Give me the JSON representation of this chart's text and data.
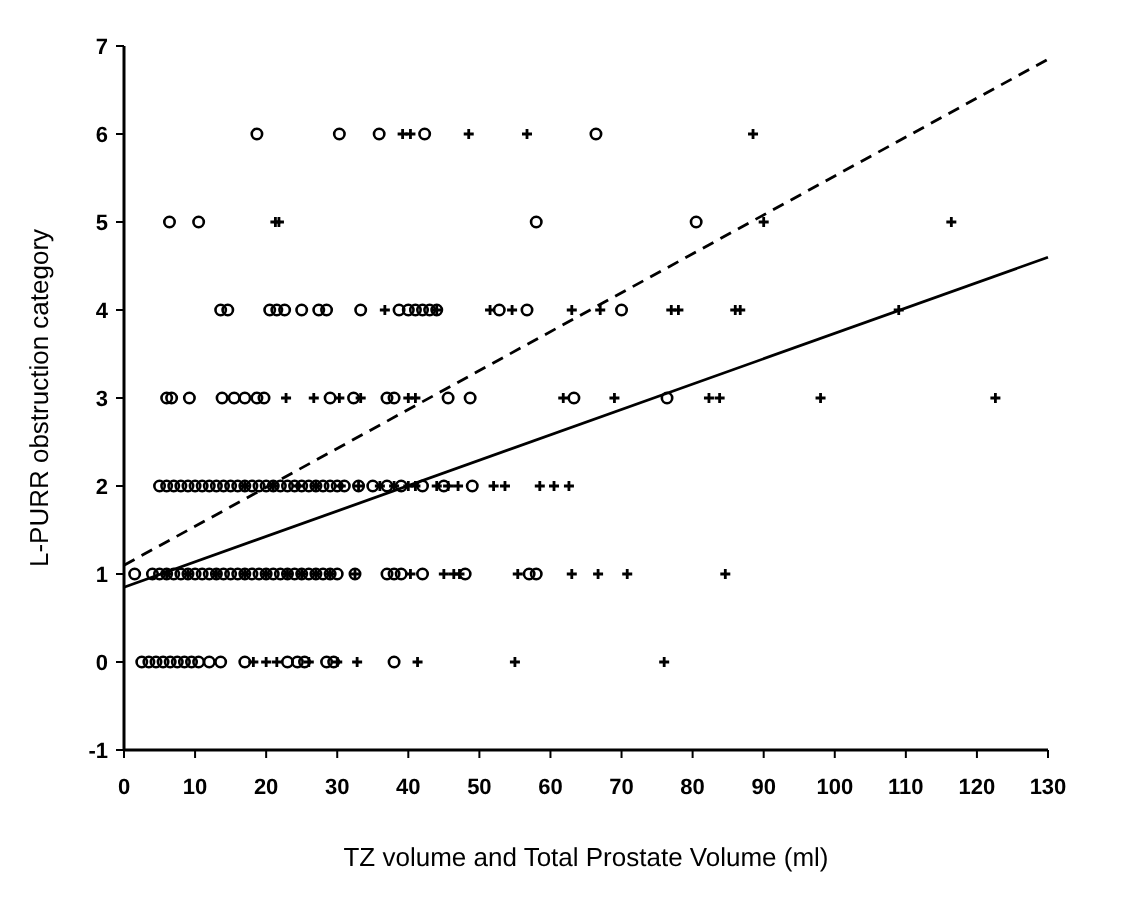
{
  "chart_data": {
    "type": "scatter",
    "xlabel": "TZ volume and Total Prostate Volume (ml)",
    "ylabel": "L-PURR obstruction category",
    "xlim": [
      0,
      130
    ],
    "ylim": [
      -1,
      7
    ],
    "xticks": [
      0,
      10,
      20,
      30,
      40,
      50,
      60,
      70,
      80,
      90,
      100,
      110,
      120,
      130
    ],
    "yticks": [
      -1,
      0,
      1,
      2,
      3,
      4,
      5,
      6,
      7
    ],
    "grid": false,
    "series": [
      {
        "marker": "circle",
        "color": "#000000",
        "x": [
          18.7,
          30.3,
          35.9,
          42.3,
          66.4,
          6.4,
          10.5,
          58,
          80.5,
          13.6,
          14.6,
          20.5,
          21.5,
          22.6,
          25,
          27.4,
          28.5,
          33.3,
          38.7,
          40,
          41,
          42,
          43,
          44,
          52.8,
          56.7,
          70,
          6,
          6.7,
          9.2,
          13.8,
          15.5,
          17,
          18.7,
          19.7,
          29,
          32.3,
          37,
          38,
          45.6,
          48.7,
          63.3,
          76.4,
          5,
          6,
          7,
          8,
          9,
          10,
          11,
          12,
          13,
          14,
          15,
          16,
          17,
          18,
          19,
          20,
          21,
          22,
          23,
          24,
          25,
          26,
          27,
          28,
          29,
          30,
          31,
          33,
          35,
          37,
          39,
          42,
          45,
          49,
          1.5,
          4,
          5,
          6,
          7,
          8,
          9,
          10,
          11,
          12,
          13,
          14,
          15,
          16,
          17,
          18,
          19,
          20,
          21,
          22,
          23,
          24,
          25,
          26,
          27,
          28,
          29,
          30,
          32.5,
          37,
          38,
          39,
          42,
          48,
          57,
          58,
          2.5,
          3.5,
          4.5,
          5.5,
          6.5,
          7.5,
          8.5,
          9.5,
          10.5,
          12,
          13.6,
          17,
          23,
          24.4,
          25.4,
          28.5,
          29.5,
          38
        ],
        "values": [
          6,
          6,
          6,
          6,
          6,
          5,
          5,
          5,
          5,
          4,
          4,
          4,
          4,
          4,
          4,
          4,
          4,
          4,
          4,
          4,
          4,
          4,
          4,
          4,
          4,
          4,
          4,
          3,
          3,
          3,
          3,
          3,
          3,
          3,
          3,
          3,
          3,
          3,
          3,
          3,
          3,
          3,
          3,
          2,
          2,
          2,
          2,
          2,
          2,
          2,
          2,
          2,
          2,
          2,
          2,
          2,
          2,
          2,
          2,
          2,
          2,
          2,
          2,
          2,
          2,
          2,
          2,
          2,
          2,
          2,
          2,
          2,
          2,
          2,
          2,
          2,
          2,
          1,
          1,
          1,
          1,
          1,
          1,
          1,
          1,
          1,
          1,
          1,
          1,
          1,
          1,
          1,
          1,
          1,
          1,
          1,
          1,
          1,
          1,
          1,
          1,
          1,
          1,
          1,
          1,
          1,
          1,
          1,
          1,
          1,
          1,
          1,
          1,
          0,
          0,
          0,
          0,
          0,
          0,
          0,
          0,
          0,
          0,
          0,
          0,
          0,
          0,
          0,
          0,
          0,
          0
        ]
      },
      {
        "marker": "cross",
        "color": "#000000",
        "x": [
          39.2,
          40.3,
          48.5,
          56.7,
          88.5,
          21.3,
          21.8,
          90,
          116.4,
          36.7,
          44,
          51.5,
          54.6,
          63,
          67,
          77,
          78,
          86,
          86.7,
          109,
          22.8,
          26.7,
          30.3,
          33.3,
          40,
          41,
          61.8,
          69,
          82.3,
          83.8,
          98,
          122.6,
          17,
          21,
          24.5,
          27,
          30.5,
          33,
          36,
          38,
          40,
          41,
          44,
          45.6,
          47,
          52,
          53.6,
          58.5,
          60.5,
          62.6,
          6,
          9,
          13,
          17,
          20,
          23,
          25,
          27,
          29,
          32.5,
          40.3,
          45,
          46.4,
          47.2,
          55.4,
          63,
          66.7,
          70.8,
          84.6,
          18.2,
          20,
          21.5,
          26,
          30,
          32.8,
          41.3,
          55,
          76
        ],
        "values": [
          6,
          6,
          6,
          6,
          6,
          5,
          5,
          5,
          5,
          4,
          4,
          4,
          4,
          4,
          4,
          4,
          4,
          4,
          4,
          4,
          3,
          3,
          3,
          3,
          3,
          3,
          3,
          3,
          3,
          3,
          3,
          3,
          2,
          2,
          2,
          2,
          2,
          2,
          2,
          2,
          2,
          2,
          2,
          2,
          2,
          2,
          2,
          2,
          2,
          2,
          1,
          1,
          1,
          1,
          1,
          1,
          1,
          1,
          1,
          1,
          1,
          1,
          1,
          1,
          1,
          1,
          1,
          1,
          1,
          0,
          0,
          0,
          0,
          0,
          0,
          0,
          0,
          0
        ]
      },
      {
        "type": "line",
        "marker": "none",
        "line_style": "dashed",
        "color": "#000000",
        "x": [
          0,
          130
        ],
        "values": [
          1.1,
          6.85
        ]
      },
      {
        "type": "line",
        "marker": "none",
        "line_style": "solid",
        "color": "#000000",
        "x": [
          0,
          130
        ],
        "values": [
          0.85,
          4.6
        ]
      }
    ]
  }
}
